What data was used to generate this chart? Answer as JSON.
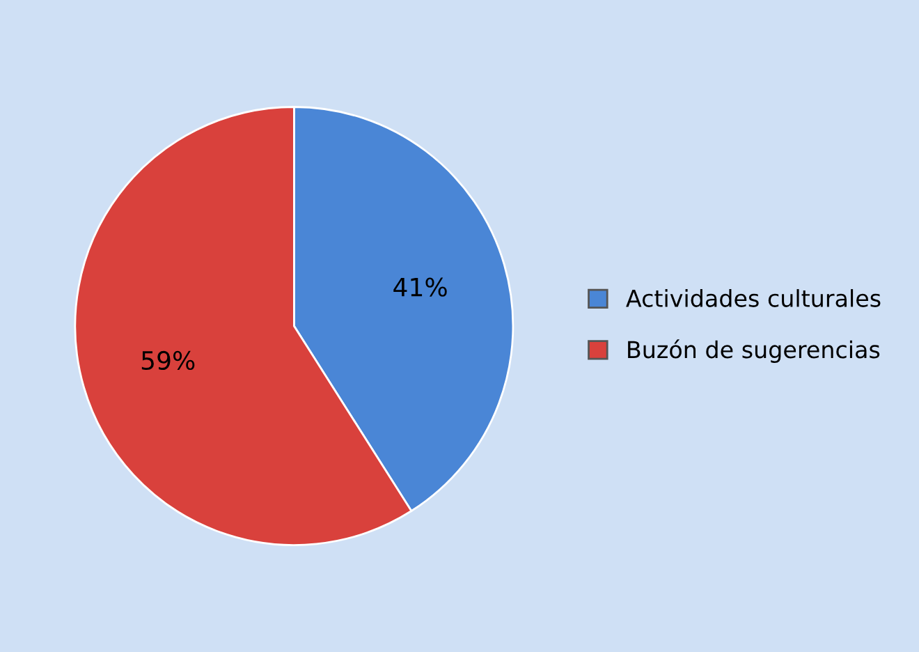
{
  "chart_data": {
    "type": "pie",
    "categories": [
      "Actividades culturales",
      "Buzón de sugerencias"
    ],
    "values": [
      41,
      59
    ],
    "colors": [
      "#4a86d6",
      "#d9413c"
    ],
    "value_labels": [
      "41%",
      "59%"
    ],
    "legend": "right"
  }
}
